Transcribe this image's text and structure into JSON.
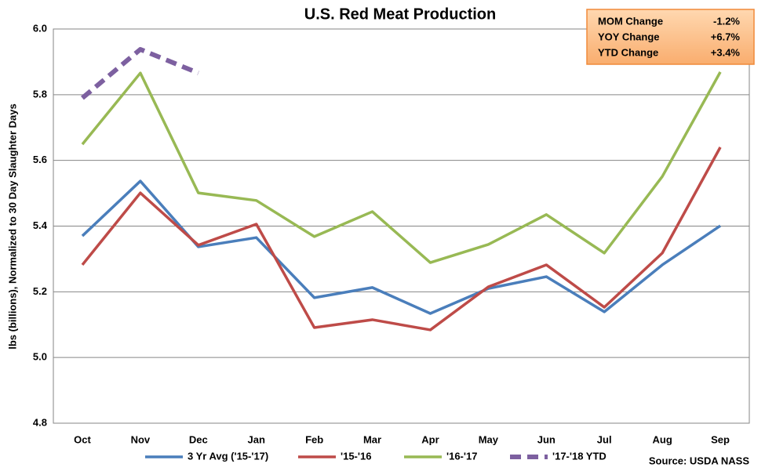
{
  "chart_data": {
    "type": "line",
    "title": "U.S. Red Meat Production",
    "y_label": "lbs (billions), Normalized to 30 Day Slaughter Days",
    "source": "Source: USDA NASS",
    "categories": [
      "Oct",
      "Nov",
      "Dec",
      "Jan",
      "Feb",
      "Mar",
      "Apr",
      "May",
      "Jun",
      "Jul",
      "Aug",
      "Sep"
    ],
    "series": [
      {
        "name": "3 Yr Avg ('15-'17)",
        "color": "#4a7ebb",
        "dashed": false,
        "values": [
          5.37,
          5.537,
          5.337,
          5.365,
          5.182,
          5.213,
          5.134,
          5.21,
          5.246,
          5.139,
          5.282,
          5.401
        ]
      },
      {
        "name": "'15-'16",
        "color": "#be4b48",
        "dashed": false,
        "values": [
          5.282,
          5.501,
          5.342,
          5.406,
          5.091,
          5.115,
          5.084,
          5.215,
          5.282,
          5.153,
          5.318,
          5.64
        ]
      },
      {
        "name": "'16-'17",
        "color": "#98b954",
        "dashed": false,
        "values": [
          5.649,
          5.866,
          5.501,
          5.478,
          5.368,
          5.444,
          5.289,
          5.344,
          5.435,
          5.318,
          5.551,
          5.869
        ]
      },
      {
        "name": "'17-'18 YTD",
        "color": "#7d60a0",
        "dashed": true,
        "values": [
          5.79,
          5.938,
          5.866,
          null,
          null,
          null,
          null,
          null,
          null,
          null,
          null,
          null
        ]
      }
    ],
    "ylim": [
      4.8,
      6.0
    ],
    "yticks": [
      {
        "value": 4.8,
        "label": "4.8"
      },
      {
        "value": 5.0,
        "label": "5.0"
      },
      5.2,
      5.4,
      5.6,
      5.8,
      {
        "value": 6.0,
        "label": "6.0"
      }
    ],
    "grid": true,
    "legend": "bottom",
    "info_box": [
      [
        "MOM Change",
        "-1.2%"
      ],
      [
        "YOY Change",
        "+6.7%"
      ],
      [
        "YTD Change",
        "+3.4%"
      ]
    ]
  }
}
